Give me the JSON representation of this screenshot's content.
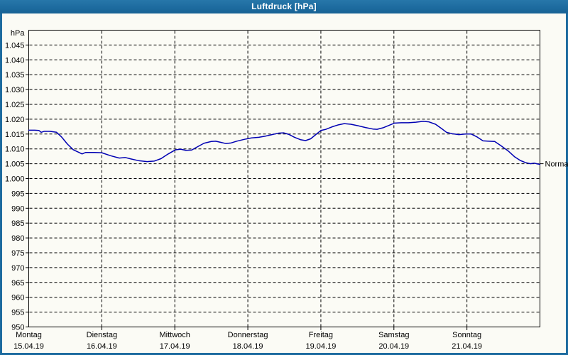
{
  "window": {
    "title": "Luftdruck [hPa]"
  },
  "colors": {
    "titlebar_bg": "#1d6b9f",
    "titlebar_text": "#ffffff",
    "frame": "#1d6b9f",
    "panel_bg": "#fbfbf5",
    "grid": "#000000",
    "axis": "#000000",
    "label_text": "#000000",
    "line": "#0000b3"
  },
  "chart_data": {
    "type": "line",
    "title": "Luftdruck [hPa]",
    "ylabel": "hPa",
    "xlabel": "",
    "ylim": [
      950,
      1050
    ],
    "ytick_step": 5,
    "grid": "dashed",
    "legend": "none",
    "yticks": [
      {
        "value": 1045,
        "label": "1.045"
      },
      {
        "value": 1040,
        "label": "1.040"
      },
      {
        "value": 1035,
        "label": "1.035"
      },
      {
        "value": 1030,
        "label": "1.030"
      },
      {
        "value": 1025,
        "label": "1.025"
      },
      {
        "value": 1020,
        "label": "1.020"
      },
      {
        "value": 1015,
        "label": "1.015"
      },
      {
        "value": 1010,
        "label": "1.010"
      },
      {
        "value": 1005,
        "label": "1.005"
      },
      {
        "value": 1000,
        "label": "1.000"
      },
      {
        "value": 995,
        "label": "995"
      },
      {
        "value": 990,
        "label": "990"
      },
      {
        "value": 985,
        "label": "985"
      },
      {
        "value": 980,
        "label": "980"
      },
      {
        "value": 975,
        "label": "975"
      },
      {
        "value": 970,
        "label": "970"
      },
      {
        "value": 965,
        "label": "965"
      },
      {
        "value": 960,
        "label": "960"
      },
      {
        "value": 955,
        "label": "955"
      },
      {
        "value": 950,
        "label": "950"
      }
    ],
    "xticks": [
      {
        "day": "Montag",
        "date": "15.04.19"
      },
      {
        "day": "Dienstag",
        "date": "16.04.19"
      },
      {
        "day": "Mittwoch",
        "date": "17.04.19"
      },
      {
        "day": "Donnerstag",
        "date": "18.04.19"
      },
      {
        "day": "Freitag",
        "date": "19.04.19"
      },
      {
        "day": "Samstag",
        "date": "20.04.19"
      },
      {
        "day": "Sonntag",
        "date": "21.04.19"
      }
    ],
    "annotation": {
      "label": "Normal",
      "value": 1005
    },
    "series": [
      {
        "name": "Luftdruck",
        "color": "#0000b3",
        "points": [
          [
            0.0,
            1016.3
          ],
          [
            0.08,
            1016.3
          ],
          [
            0.14,
            1016.2
          ],
          [
            0.17,
            1015.6
          ],
          [
            0.21,
            1015.9
          ],
          [
            0.29,
            1015.9
          ],
          [
            0.38,
            1015.6
          ],
          [
            0.45,
            1014.0
          ],
          [
            0.53,
            1011.6
          ],
          [
            0.61,
            1009.7
          ],
          [
            0.68,
            1008.9
          ],
          [
            0.73,
            1008.3
          ],
          [
            0.78,
            1008.8
          ],
          [
            0.9,
            1008.8
          ],
          [
            1.0,
            1008.7
          ],
          [
            1.12,
            1007.7
          ],
          [
            1.24,
            1006.9
          ],
          [
            1.32,
            1007.1
          ],
          [
            1.4,
            1006.6
          ],
          [
            1.51,
            1006.0
          ],
          [
            1.62,
            1005.7
          ],
          [
            1.72,
            1005.9
          ],
          [
            1.81,
            1006.7
          ],
          [
            1.91,
            1008.3
          ],
          [
            2.01,
            1009.7
          ],
          [
            2.08,
            1009.9
          ],
          [
            2.15,
            1009.5
          ],
          [
            2.23,
            1009.6
          ],
          [
            2.31,
            1010.7
          ],
          [
            2.4,
            1011.9
          ],
          [
            2.5,
            1012.5
          ],
          [
            2.56,
            1012.6
          ],
          [
            2.63,
            1012.2
          ],
          [
            2.7,
            1011.8
          ],
          [
            2.77,
            1012.0
          ],
          [
            2.85,
            1012.6
          ],
          [
            2.95,
            1013.2
          ],
          [
            3.05,
            1013.7
          ],
          [
            3.15,
            1013.9
          ],
          [
            3.24,
            1014.3
          ],
          [
            3.33,
            1014.8
          ],
          [
            3.42,
            1015.3
          ],
          [
            3.49,
            1015.4
          ],
          [
            3.56,
            1014.9
          ],
          [
            3.64,
            1013.9
          ],
          [
            3.72,
            1013.1
          ],
          [
            3.79,
            1012.8
          ],
          [
            3.86,
            1013.4
          ],
          [
            3.93,
            1014.8
          ],
          [
            4.0,
            1016.2
          ],
          [
            4.07,
            1016.6
          ],
          [
            4.15,
            1017.4
          ],
          [
            4.24,
            1018.1
          ],
          [
            4.32,
            1018.5
          ],
          [
            4.41,
            1018.3
          ],
          [
            4.51,
            1017.8
          ],
          [
            4.61,
            1017.2
          ],
          [
            4.71,
            1016.7
          ],
          [
            4.77,
            1016.6
          ],
          [
            4.85,
            1017.1
          ],
          [
            4.93,
            1017.9
          ],
          [
            5.01,
            1018.7
          ],
          [
            5.1,
            1018.8
          ],
          [
            5.2,
            1018.8
          ],
          [
            5.3,
            1019.0
          ],
          [
            5.4,
            1019.3
          ],
          [
            5.48,
            1019.1
          ],
          [
            5.57,
            1018.3
          ],
          [
            5.65,
            1016.9
          ],
          [
            5.72,
            1015.6
          ],
          [
            5.8,
            1015.1
          ],
          [
            5.89,
            1014.8
          ],
          [
            5.98,
            1015.0
          ],
          [
            6.06,
            1015.0
          ],
          [
            6.14,
            1014.0
          ],
          [
            6.22,
            1012.7
          ],
          [
            6.3,
            1012.6
          ],
          [
            6.38,
            1012.5
          ],
          [
            6.47,
            1011.0
          ],
          [
            6.57,
            1009.2
          ],
          [
            6.65,
            1007.4
          ],
          [
            6.73,
            1006.1
          ],
          [
            6.8,
            1005.4
          ],
          [
            6.87,
            1005.0
          ],
          [
            6.92,
            1005.2
          ],
          [
            6.97,
            1004.9
          ],
          [
            7.0,
            1004.8
          ]
        ]
      }
    ]
  }
}
